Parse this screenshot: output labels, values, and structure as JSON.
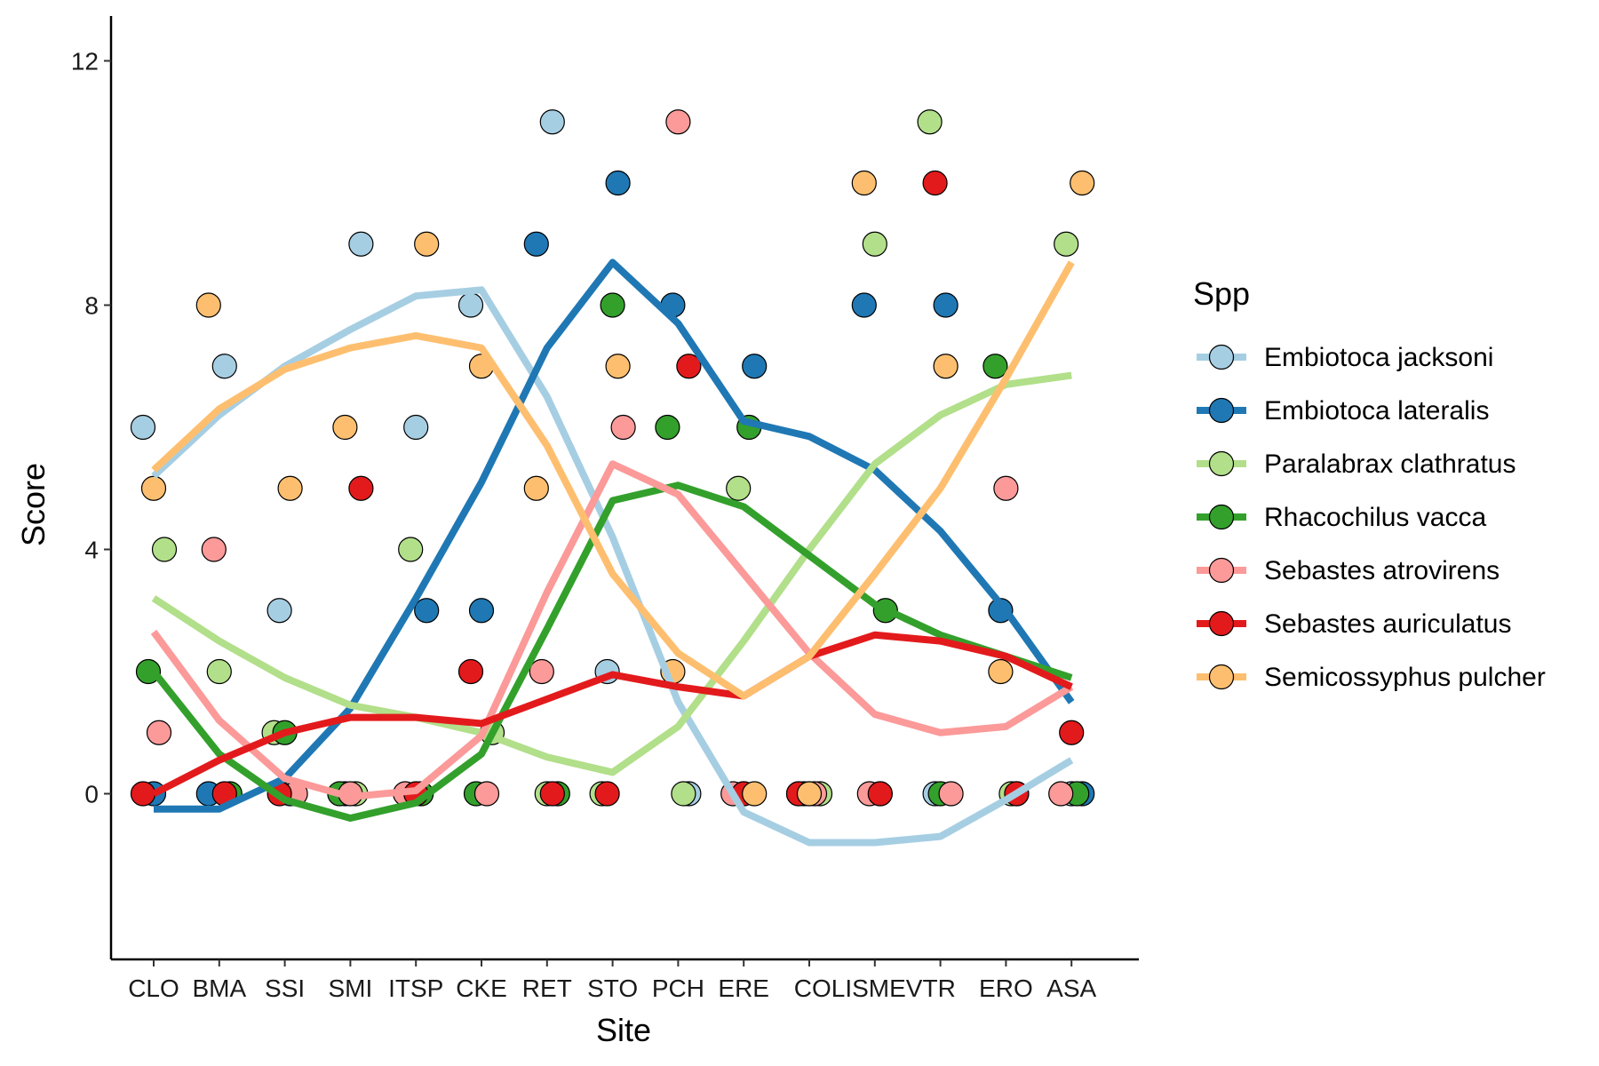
{
  "chart_data": {
    "type": "scatter",
    "xlabel": "Site",
    "ylabel": "Score",
    "ylim": [
      -2.6,
      12.8
    ],
    "yticks": [
      0,
      4,
      8,
      12
    ],
    "categories": [
      "CLO",
      "BMA",
      "SSI",
      "SMI",
      "ITSP",
      "CKE",
      "RET",
      "STO",
      "PCH",
      "ERE",
      "COLI",
      "SME",
      "VTR",
      "ERO",
      "ASA"
    ],
    "tick_labels": [
      {
        "i": 0,
        "label": "CLO"
      },
      {
        "i": 1,
        "label": "BMA"
      },
      {
        "i": 2,
        "label": "SSI"
      },
      {
        "i": 3,
        "label": "SMI"
      },
      {
        "i": 4,
        "label": "ITSP"
      },
      {
        "i": 5,
        "label": "CKE"
      },
      {
        "i": 6,
        "label": "RET"
      },
      {
        "i": 7,
        "label": "STO"
      },
      {
        "i": 8,
        "label": "PCH"
      },
      {
        "i": 9,
        "label": "ERE"
      },
      {
        "i": 10,
        "label": "COLISMEVTR"
      },
      {
        "i": 13,
        "label": "ERO"
      },
      {
        "i": 14,
        "label": "ASA"
      }
    ],
    "legend": {
      "title": "Spp",
      "position": "right"
    },
    "grid": false,
    "series": [
      {
        "name": "Embiotoca jacksoni",
        "color": "#A6CEE3",
        "values": [
          6,
          7,
          3,
          9,
          6,
          8,
          11,
          2,
          0,
          0,
          0,
          0,
          0,
          0,
          0
        ],
        "smooth": [
          5.2,
          6.2,
          7.0,
          7.6,
          8.15,
          8.25,
          6.5,
          4.2,
          1.5,
          -0.3,
          -0.8,
          -0.8,
          -0.7,
          -0.1,
          0.55
        ]
      },
      {
        "name": "Embiotoca lateralis",
        "color": "#1F78B4",
        "values": [
          0,
          0,
          0,
          0,
          3,
          3,
          9,
          10,
          8,
          7,
          0,
          8,
          8,
          3,
          0
        ],
        "smooth": [
          -0.25,
          -0.25,
          0.25,
          1.4,
          3.2,
          5.1,
          7.3,
          8.7,
          7.7,
          6.1,
          5.85,
          5.3,
          4.3,
          3.0,
          1.5
        ]
      },
      {
        "name": "Paralabrax clathratus",
        "color": "#B2DF8A",
        "values": [
          4,
          2,
          1,
          0,
          4,
          1,
          0,
          0,
          0,
          5,
          0,
          9,
          11,
          0,
          9
        ],
        "smooth": [
          3.2,
          2.5,
          1.9,
          1.45,
          1.25,
          1.0,
          0.6,
          0.35,
          1.1,
          2.5,
          4.0,
          5.4,
          6.2,
          6.7,
          6.85
        ]
      },
      {
        "name": "Rhacochilus vacca",
        "color": "#33A02C",
        "values": [
          2,
          0,
          1,
          0,
          0,
          0,
          0,
          8,
          6,
          6,
          0,
          3,
          0,
          7,
          0
        ],
        "smooth": [
          2.0,
          0.65,
          -0.1,
          -0.4,
          -0.15,
          0.65,
          2.7,
          4.8,
          5.05,
          4.7,
          3.9,
          3.1,
          2.6,
          2.25,
          1.9
        ]
      },
      {
        "name": "Sebastes atrovirens",
        "color": "#FB9A99",
        "values": [
          1,
          4,
          0,
          0,
          0,
          0,
          2,
          6,
          11,
          0,
          0,
          0,
          0,
          5,
          0
        ],
        "smooth": [
          2.65,
          1.2,
          0.25,
          -0.05,
          0.05,
          0.95,
          3.3,
          5.4,
          4.9,
          3.6,
          2.3,
          1.3,
          1.0,
          1.1,
          1.75
        ]
      },
      {
        "name": "Sebastes auriculatus",
        "color": "#E31A1C",
        "values": [
          0,
          0,
          0,
          5,
          0,
          2,
          0,
          0,
          7,
          0,
          0,
          0,
          10,
          0,
          1
        ],
        "smooth": [
          0.0,
          0.55,
          1.0,
          1.25,
          1.25,
          1.15,
          1.55,
          1.95,
          1.75,
          1.6,
          2.25,
          2.6,
          2.5,
          2.25,
          1.75
        ]
      },
      {
        "name": "Semicossyphus pulcher",
        "color": "#FDBF6F",
        "values": [
          5,
          8,
          5,
          6,
          9,
          7,
          5,
          7,
          2,
          0,
          0,
          10,
          7,
          2,
          10
        ],
        "smooth": [
          5.3,
          6.3,
          6.95,
          7.3,
          7.5,
          7.3,
          5.7,
          3.6,
          2.3,
          1.6,
          2.25,
          3.6,
          5.0,
          6.8,
          8.7
        ]
      }
    ]
  }
}
